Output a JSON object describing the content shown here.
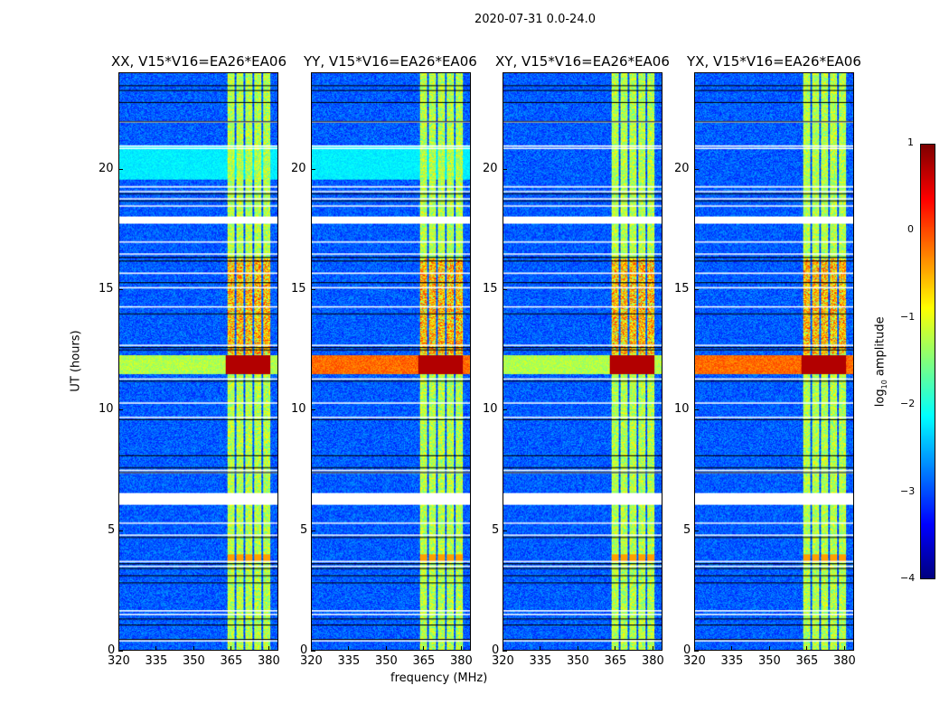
{
  "chart_data": {
    "type": "heatmap",
    "suptitle": "2020-07-31 0.0-24.0",
    "xlabel": "frequency (MHz)",
    "ylabel": "UT (hours)",
    "xlim": [
      320,
      384
    ],
    "ylim": [
      0,
      24
    ],
    "xticks": [
      "320",
      "335",
      "350",
      "365",
      "380"
    ],
    "xtick_values": [
      320,
      335,
      350,
      365,
      380
    ],
    "yticks": [
      "0",
      "5",
      "10",
      "15",
      "20"
    ],
    "ytick_values": [
      0,
      5,
      10,
      15,
      20
    ],
    "panels": [
      {
        "title": "XX, V15*V16=EA26*EA06",
        "cyan_block": true
      },
      {
        "title": "YY, V15*V16=EA26*EA06",
        "cyan_block": true
      },
      {
        "title": "XY, V15*V16=EA26*EA06",
        "cyan_block": false
      },
      {
        "title": "YX, V15*V16=EA26*EA06",
        "cyan_block": false
      }
    ],
    "rfi_band_mhz": [
      363,
      381
    ],
    "strong_rfi_hours": [
      11.5,
      12.3
    ],
    "flagged_hours": [
      [
        6.05,
        6.55
      ],
      [
        17.75,
        18.05
      ]
    ],
    "colorbar": {
      "label": "log10 amplitude",
      "range": [
        -4,
        1
      ],
      "ticks": [
        "1",
        "0",
        "−1",
        "−2",
        "−3",
        "−4"
      ],
      "tick_values": [
        1,
        0,
        -1,
        -2,
        -3,
        -4
      ],
      "colormap": "jet"
    }
  }
}
